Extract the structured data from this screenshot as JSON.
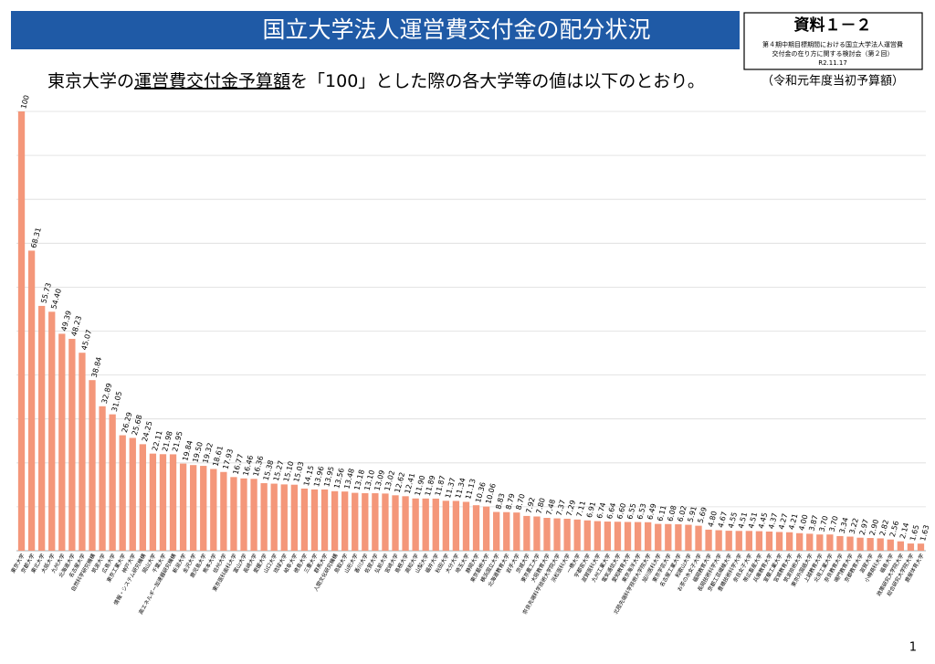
{
  "chart_data": {
    "type": "bar",
    "title": "国立大学法人運営費交付金の配分状況",
    "badge": "資料１－２",
    "meeting_lines": [
      "第４期中期目標期間における国立大学法人運営費",
      "交付金の在り方に関する検討会（第２回）"
    ],
    "date": "R2.11.17",
    "subtitle_parts": [
      "東京大学の",
      "運営費交付金予算額",
      "を「100」とした際の各大学等の値は以下のとおり。"
    ],
    "note": "（令和元年度当初予算額）",
    "page_number": "1",
    "color": "#f4977a",
    "ylim": [
      0,
      100
    ],
    "yticks": [
      0,
      10,
      20,
      30,
      40,
      50,
      60,
      70,
      80,
      90,
      100
    ],
    "grid": true,
    "categories": [
      "東京大学",
      "京都大学",
      "東北大学",
      "大阪大学",
      "九州大学",
      "北海道大学",
      "名古屋大学",
      "自然科学研究機構",
      "筑波大学",
      "広島大学",
      "東京工業大学",
      "神戸大学",
      "情報・システム研究機構",
      "岡山大学",
      "千葉大学",
      "高エネルギー加速器研究機構",
      "新潟大学",
      "金沢大学",
      "鹿児島大学",
      "熊本大学",
      "信州大学",
      "東京医科歯科大学",
      "富山大学",
      "長崎大学",
      "愛媛大学",
      "山口大学",
      "琉球大学",
      "岐阜大学",
      "徳島大学",
      "三重大学",
      "群馬大学",
      "人間文化研究機構",
      "鳥取大学",
      "山形大学",
      "香川大学",
      "佐賀大学",
      "弘前大学",
      "宮崎大学",
      "島根大学",
      "高知大学",
      "山梨大学",
      "福井大学",
      "秋田大学",
      "大分大学",
      "埼玉大学",
      "静岡大学",
      "東京藝術大学",
      "横浜国立大学",
      "北海道教育大学",
      "岩手大学",
      "茨城大学",
      "東京農工大学",
      "大阪教育大学",
      "奈良先端科学技術大学院大学",
      "浜松医科大学",
      "一橋大学",
      "宇都宮大学",
      "滋賀医科大学",
      "九州工業大学",
      "電気通信大学",
      "愛知教育大学",
      "東京海洋大学",
      "北陸先端科学技術大学院大学",
      "旭川医科大学",
      "東京学芸大学",
      "名古屋工業大学",
      "和歌山大学",
      "お茶の水女子大学",
      "福岡教育大学",
      "長岡技術科学大学",
      "京都工芸繊維大学",
      "豊橋技術科学大学",
      "奈良女子大学",
      "帯広畜産大学",
      "兵庫教育大学",
      "室蘭工業大学",
      "宮城教育大学",
      "筑波技術大学",
      "東京外国語大学",
      "上越教育大学",
      "北見工業大学",
      "奈良教育大学",
      "鳴門教育大学",
      "京都教育大学",
      "滋賀大学",
      "小樽商科大学",
      "福島大学",
      "政策研究大学院大学",
      "総合研究大学院大学",
      "鹿屋体育大学"
    ],
    "values": [
      100,
      68.31,
      55.73,
      54.4,
      49.39,
      48.23,
      45.07,
      38.84,
      32.89,
      31.05,
      26.29,
      25.68,
      24.25,
      22.11,
      21.98,
      21.95,
      19.84,
      19.5,
      19.32,
      18.61,
      17.93,
      16.77,
      16.46,
      16.36,
      15.38,
      15.27,
      15.1,
      15.03,
      14.15,
      13.96,
      13.95,
      13.56,
      13.48,
      13.18,
      13.1,
      13.09,
      13.02,
      12.62,
      12.41,
      11.9,
      11.89,
      11.87,
      11.37,
      11.34,
      11.13,
      10.36,
      10.06,
      8.83,
      8.79,
      8.7,
      7.92,
      7.8,
      7.48,
      7.37,
      7.29,
      7.11,
      6.91,
      6.74,
      6.64,
      6.6,
      6.55,
      6.53,
      6.49,
      6.11,
      6.08,
      6.02,
      5.91,
      5.69,
      4.8,
      4.67,
      4.55,
      4.51,
      4.51,
      4.45,
      4.37,
      4.27,
      4.21,
      4.0,
      3.87,
      3.7,
      3.7,
      3.34,
      3.22,
      2.97,
      2.9,
      2.82,
      2.56,
      2.14,
      1.65,
      1.63
    ],
    "value_labels": [
      "100",
      "68.31",
      "55.73",
      "54.40",
      "49.39",
      "48.23",
      "45.07",
      "38.84",
      "32.89",
      "31.05",
      "26.29",
      "25.68",
      "24.25",
      "22.11",
      "21.98",
      "21.95",
      "19.84",
      "19.50",
      "19.32",
      "18.61",
      "17.93",
      "16.77",
      "16.46",
      "16.36",
      "15.38",
      "15.27",
      "15.10",
      "15.03",
      "14.15",
      "13.96",
      "13.95",
      "13.56",
      "13.48",
      "13.18",
      "13.10",
      "13.09",
      "13.02",
      "12.62",
      "12.41",
      "11.90",
      "11.89",
      "11.87",
      "11.37",
      "11.34",
      "11.13",
      "10.36",
      "10.06",
      "8.83",
      "8.79",
      "8.70",
      "7.92",
      "7.80",
      "7.48",
      "7.37",
      "7.29",
      "7.11",
      "6.91",
      "6.74",
      "6.64",
      "6.60",
      "6.55",
      "6.53",
      "6.49",
      "6.11",
      "6.08",
      "6.02",
      "5.91",
      "5.69",
      "4.80",
      "4.67",
      "4.55",
      "4.51",
      "4.51",
      "4.45",
      "4.37",
      "4.27",
      "4.21",
      "4.00",
      "3.87",
      "3.70",
      "3.70",
      "3.34",
      "3.22",
      "2.97",
      "2.90",
      "2.82",
      "2.56",
      "2.14",
      "1.65",
      "1.63"
    ]
  }
}
